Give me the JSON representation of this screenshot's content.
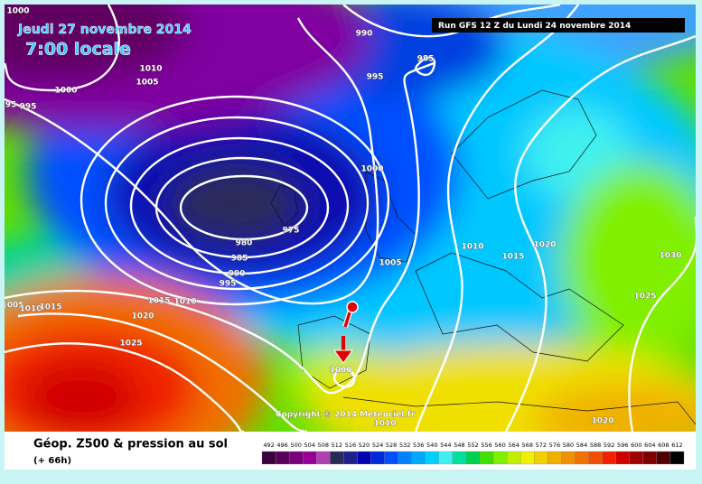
{
  "header": {
    "date": "Jeudi 27 novembre 2014",
    "time": "7:00 locale",
    "run": "Run GFS 12 Z du Lundi 24 novembre 2014"
  },
  "map": {
    "isobar_labels": [
      1000,
      990,
      985,
      995,
      1010,
      1005,
      1000,
      95,
      995,
      1000,
      975,
      980,
      985,
      990,
      995,
      1010,
      1020,
      1015,
      1005,
      1030,
      1025,
      1015,
      1010,
      1005,
      1010,
      1015,
      1020,
      1025,
      1000,
      1010,
      1020
    ]
  },
  "copyright": "Copyright © 2014 Meteociel.fr",
  "legend": {
    "title": "Géop. Z500 & pression au sol",
    "lead": "(+ 66h)",
    "ticks": [
      492,
      496,
      500,
      504,
      508,
      512,
      516,
      520,
      524,
      528,
      532,
      536,
      540,
      544,
      548,
      552,
      556,
      560,
      564,
      568,
      572,
      576,
      580,
      584,
      588,
      592,
      596,
      600,
      604,
      608,
      612
    ],
    "colors": [
      "#3c003c",
      "#5a005a",
      "#7a007a",
      "#960096",
      "#b040b0",
      "#2a2a5a",
      "#1e1e8c",
      "#0000b4",
      "#0028dc",
      "#0050ff",
      "#0080ff",
      "#00a8ff",
      "#00d0ff",
      "#40f0f0",
      "#00e0a0",
      "#00d050",
      "#40e000",
      "#80f000",
      "#c0f000",
      "#f0f000",
      "#f0d000",
      "#f0b000",
      "#f09000",
      "#f07000",
      "#f05000",
      "#f02000",
      "#d00000",
      "#a00000",
      "#800000",
      "#500000",
      "#000000"
    ]
  }
}
